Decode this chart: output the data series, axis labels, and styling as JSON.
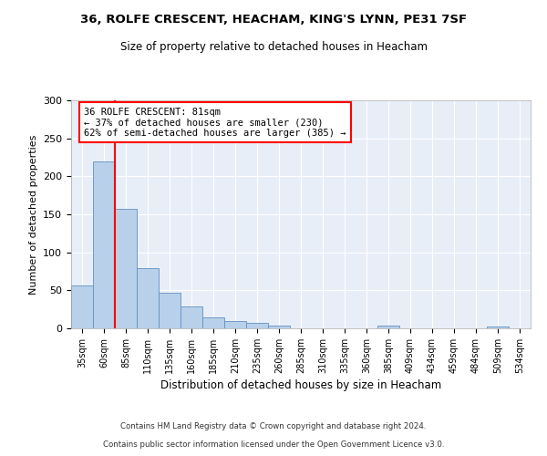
{
  "title1": "36, ROLFE CRESCENT, HEACHAM, KING'S LYNN, PE31 7SF",
  "title2": "Size of property relative to detached houses in Heacham",
  "xlabel": "Distribution of detached houses by size in Heacham",
  "ylabel": "Number of detached properties",
  "categories": [
    "35sqm",
    "60sqm",
    "85sqm",
    "110sqm",
    "135sqm",
    "160sqm",
    "185sqm",
    "210sqm",
    "235sqm",
    "260sqm",
    "285sqm",
    "310sqm",
    "335sqm",
    "360sqm",
    "385sqm",
    "409sqm",
    "434sqm",
    "459sqm",
    "484sqm",
    "509sqm",
    "534sqm"
  ],
  "values": [
    57,
    220,
    157,
    79,
    47,
    29,
    15,
    10,
    7,
    4,
    0,
    0,
    0,
    0,
    4,
    0,
    0,
    0,
    0,
    2,
    0
  ],
  "bar_color": "#b8d0ea",
  "bar_edge_color": "#6090c0",
  "annotation_text": "36 ROLFE CRESCENT: 81sqm\n← 37% of detached houses are smaller (230)\n62% of semi-detached houses are larger (385) →",
  "annotation_box_color": "white",
  "annotation_box_edge_color": "red",
  "vline_color": "red",
  "vline_x": 1.5,
  "ylim": [
    0,
    300
  ],
  "yticks": [
    0,
    50,
    100,
    150,
    200,
    250,
    300
  ],
  "footer_line1": "Contains HM Land Registry data © Crown copyright and database right 2024.",
  "footer_line2": "Contains public sector information licensed under the Open Government Licence v3.0.",
  "background_color": "#e8eef8",
  "grid_color": "#ffffff",
  "fig_bg": "#ffffff"
}
